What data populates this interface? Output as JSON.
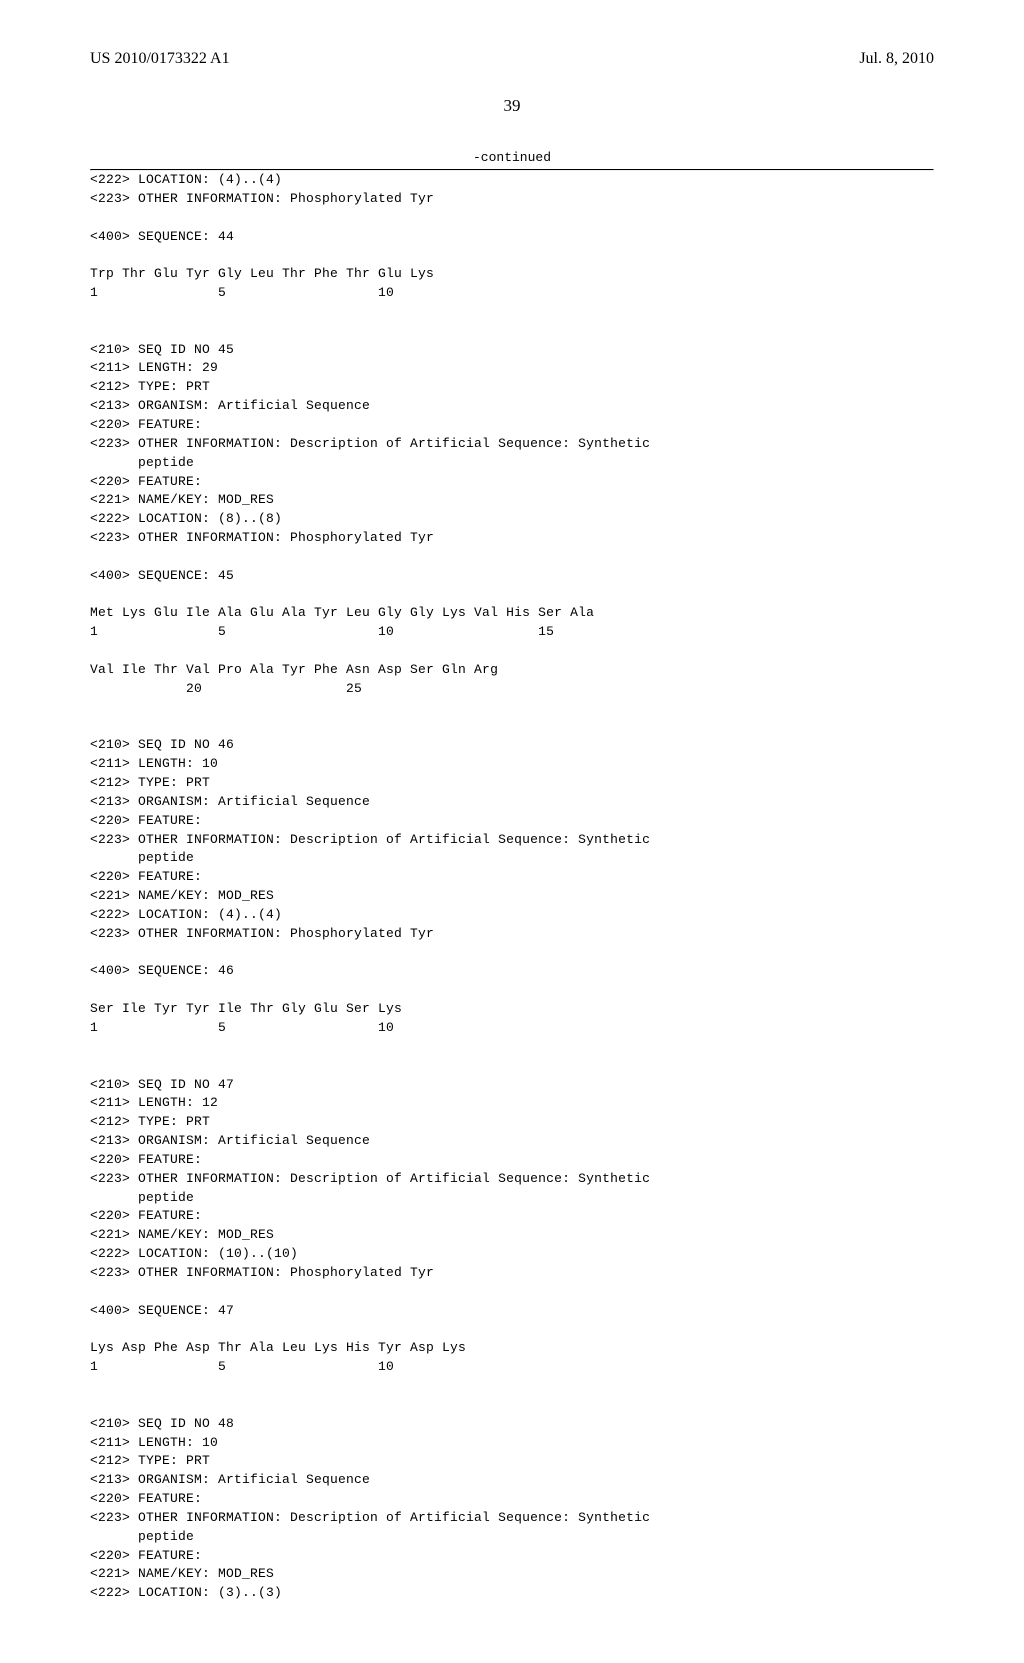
{
  "header": {
    "pub_id": "US 2010/0173322 A1",
    "pub_date": "Jul. 8, 2010"
  },
  "page_number": "39",
  "continued_label": "-continued",
  "sequence_text": "<222> LOCATION: (4)..(4)\n<223> OTHER INFORMATION: Phosphorylated Tyr\n\n<400> SEQUENCE: 44\n\nTrp Thr Glu Tyr Gly Leu Thr Phe Thr Glu Lys\n1               5                   10\n\n\n<210> SEQ ID NO 45\n<211> LENGTH: 29\n<212> TYPE: PRT\n<213> ORGANISM: Artificial Sequence\n<220> FEATURE:\n<223> OTHER INFORMATION: Description of Artificial Sequence: Synthetic\n      peptide\n<220> FEATURE:\n<221> NAME/KEY: MOD_RES\n<222> LOCATION: (8)..(8)\n<223> OTHER INFORMATION: Phosphorylated Tyr\n\n<400> SEQUENCE: 45\n\nMet Lys Glu Ile Ala Glu Ala Tyr Leu Gly Gly Lys Val His Ser Ala\n1               5                   10                  15\n\nVal Ile Thr Val Pro Ala Tyr Phe Asn Asp Ser Gln Arg\n            20                  25\n\n\n<210> SEQ ID NO 46\n<211> LENGTH: 10\n<212> TYPE: PRT\n<213> ORGANISM: Artificial Sequence\n<220> FEATURE:\n<223> OTHER INFORMATION: Description of Artificial Sequence: Synthetic\n      peptide\n<220> FEATURE:\n<221> NAME/KEY: MOD_RES\n<222> LOCATION: (4)..(4)\n<223> OTHER INFORMATION: Phosphorylated Tyr\n\n<400> SEQUENCE: 46\n\nSer Ile Tyr Tyr Ile Thr Gly Glu Ser Lys\n1               5                   10\n\n\n<210> SEQ ID NO 47\n<211> LENGTH: 12\n<212> TYPE: PRT\n<213> ORGANISM: Artificial Sequence\n<220> FEATURE:\n<223> OTHER INFORMATION: Description of Artificial Sequence: Synthetic\n      peptide\n<220> FEATURE:\n<221> NAME/KEY: MOD_RES\n<222> LOCATION: (10)..(10)\n<223> OTHER INFORMATION: Phosphorylated Tyr\n\n<400> SEQUENCE: 47\n\nLys Asp Phe Asp Thr Ala Leu Lys His Tyr Asp Lys\n1               5                   10\n\n\n<210> SEQ ID NO 48\n<211> LENGTH: 10\n<212> TYPE: PRT\n<213> ORGANISM: Artificial Sequence\n<220> FEATURE:\n<223> OTHER INFORMATION: Description of Artificial Sequence: Synthetic\n      peptide\n<220> FEATURE:\n<221> NAME/KEY: MOD_RES\n<222> LOCATION: (3)..(3)"
}
